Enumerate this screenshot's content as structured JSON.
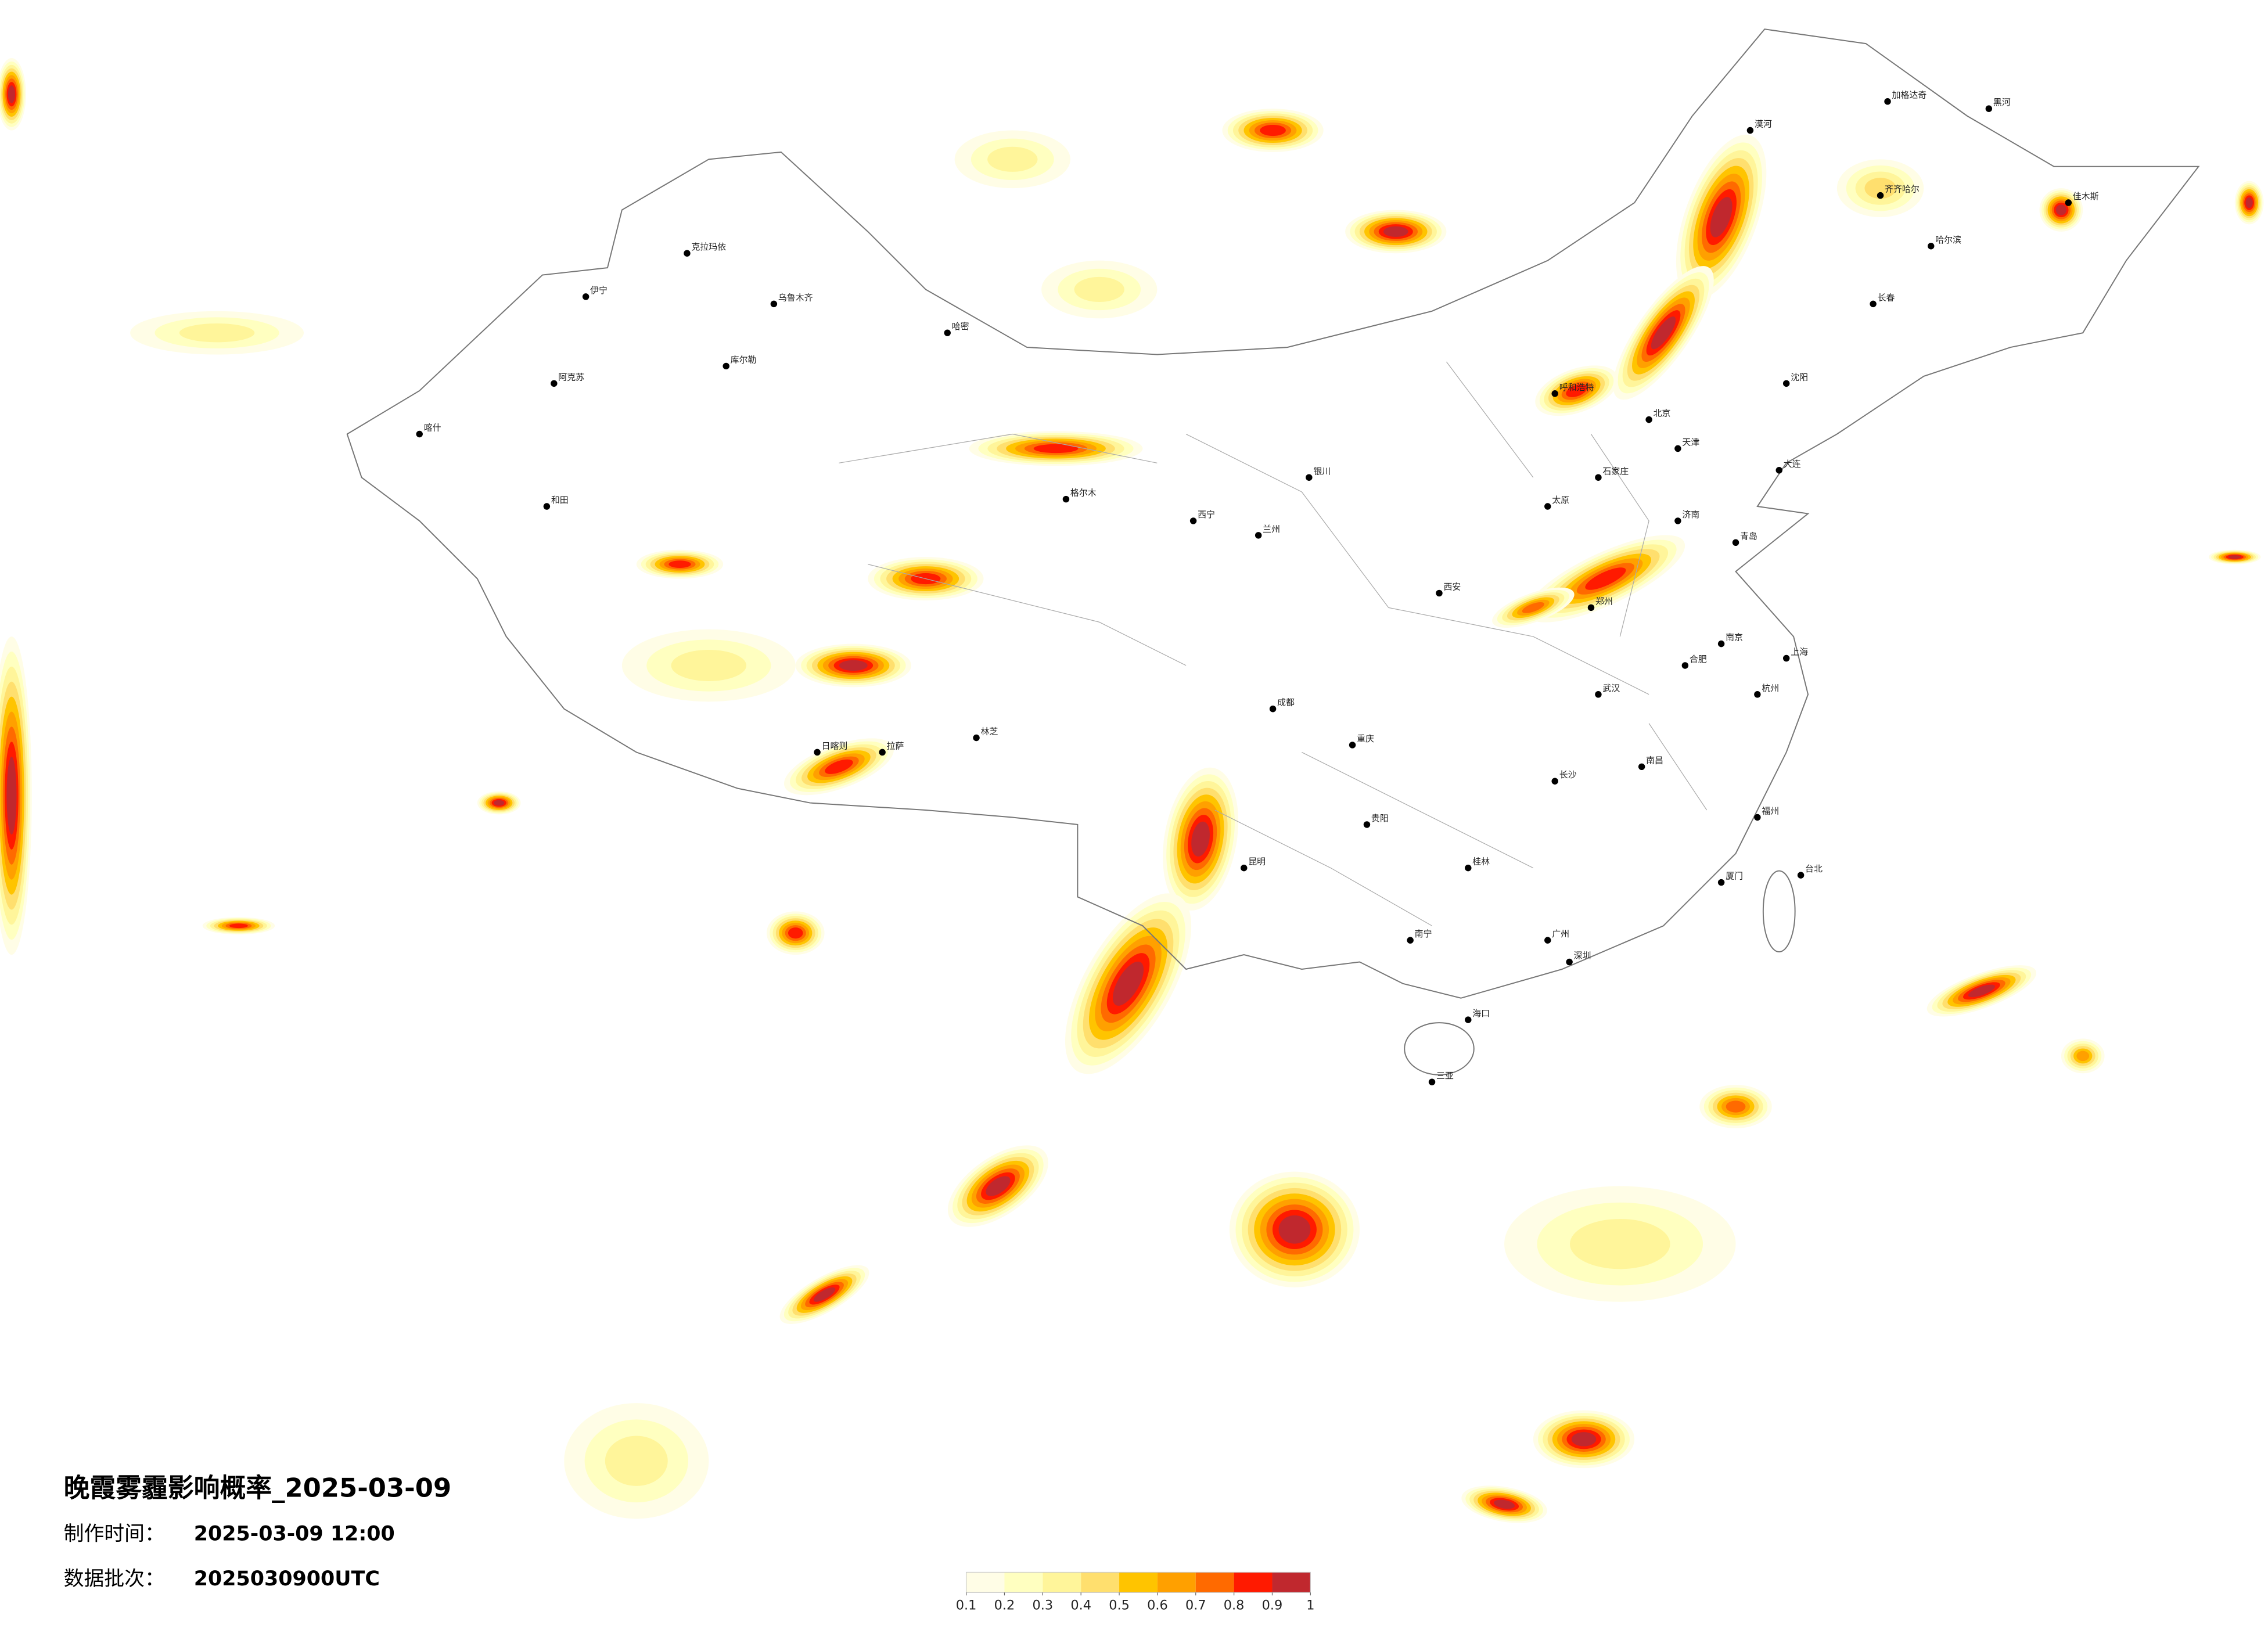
{
  "title": "晚霞雾霾影响概率_2025-03-09",
  "info": [
    {
      "label": "制作时间：",
      "value": "2025-03-09 12:00"
    },
    {
      "label": "数据批次：",
      "value": "2025030900UTC"
    }
  ],
  "legend": {
    "ticks": [
      0.1,
      0.2,
      0.3,
      0.4,
      0.5,
      0.6,
      0.7,
      0.8,
      0.9,
      1
    ],
    "colors": [
      "#fffde6",
      "#ffffc0",
      "#fff59a",
      "#ffdf6e",
      "#ffc400",
      "#ffa000",
      "#ff6a00",
      "#ff1a00",
      "#c0282e"
    ]
  },
  "cities": [
    "北京",
    "天津",
    "石家庄",
    "太原",
    "呼和浩特",
    "沈阳",
    "长春",
    "哈尔滨",
    "济南",
    "郑州",
    "西安",
    "兰州",
    "西宁",
    "银川",
    "乌鲁木齐",
    "拉萨",
    "成都",
    "重庆",
    "贵阳",
    "昆明",
    "南宁",
    "广州",
    "海口",
    "福州",
    "台北",
    "南昌",
    "长沙",
    "武汉",
    "合肥",
    "南京",
    "杭州",
    "上海",
    "齐齐哈尔",
    "伊宁",
    "喀什",
    "和田",
    "阿克苏",
    "克拉玛依",
    "库尔勒",
    "哈密",
    "格尔木",
    "日喀则",
    "林芝",
    "大连",
    "青岛",
    "厦门",
    "深圳",
    "三亚",
    "桂林",
    "漠河",
    "加格达奇",
    "黑河",
    "佳木斯"
  ]
}
